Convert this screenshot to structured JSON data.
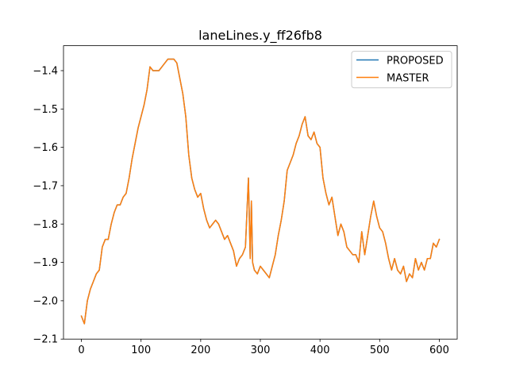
{
  "chart_data": {
    "type": "line",
    "title": "laneLines.y_ff26fb8",
    "xlabel": "",
    "ylabel": "",
    "xlim": [
      -30,
      630
    ],
    "ylim": [
      -2.1,
      -1.335
    ],
    "xticks": [
      0,
      100,
      200,
      300,
      400,
      500,
      600
    ],
    "yticks": [
      -2.1,
      -2.0,
      -1.9,
      -1.8,
      -1.7,
      -1.6,
      -1.5,
      -1.4
    ],
    "xtick_labels": [
      "0",
      "100",
      "200",
      "300",
      "400",
      "500",
      "600"
    ],
    "ytick_labels": [
      "−2.1",
      "−2.0",
      "−1.9",
      "−1.8",
      "−1.7",
      "−1.6",
      "−1.5",
      "−1.4"
    ],
    "grid": false,
    "legend_position": "top-right",
    "x": [
      0,
      5,
      10,
      15,
      20,
      25,
      30,
      35,
      40,
      45,
      50,
      55,
      60,
      65,
      70,
      75,
      80,
      85,
      90,
      95,
      100,
      105,
      110,
      115,
      120,
      125,
      130,
      135,
      140,
      145,
      150,
      155,
      160,
      165,
      170,
      175,
      180,
      185,
      190,
      195,
      200,
      205,
      210,
      215,
      220,
      225,
      230,
      235,
      240,
      245,
      250,
      255,
      260,
      265,
      270,
      275,
      280,
      283,
      285,
      287,
      290,
      295,
      300,
      305,
      310,
      315,
      320,
      325,
      330,
      335,
      340,
      345,
      350,
      355,
      360,
      365,
      370,
      375,
      380,
      385,
      390,
      395,
      400,
      405,
      410,
      415,
      420,
      425,
      430,
      435,
      440,
      445,
      450,
      455,
      460,
      465,
      470,
      475,
      480,
      485,
      490,
      495,
      500,
      505,
      510,
      515,
      520,
      525,
      530,
      535,
      540,
      545,
      550,
      555,
      560,
      565,
      570,
      575,
      580,
      585,
      590,
      595,
      600
    ],
    "series": [
      {
        "name": "PROPOSED",
        "color": "#1f77b4",
        "values": [
          -2.04,
          -2.06,
          -2.0,
          -1.97,
          -1.95,
          -1.93,
          -1.92,
          -1.86,
          -1.84,
          -1.84,
          -1.8,
          -1.77,
          -1.75,
          -1.75,
          -1.73,
          -1.72,
          -1.68,
          -1.63,
          -1.59,
          -1.55,
          -1.52,
          -1.49,
          -1.45,
          -1.39,
          -1.4,
          -1.4,
          -1.4,
          -1.39,
          -1.38,
          -1.37,
          -1.37,
          -1.37,
          -1.38,
          -1.42,
          -1.46,
          -1.52,
          -1.62,
          -1.68,
          -1.71,
          -1.73,
          -1.72,
          -1.76,
          -1.79,
          -1.81,
          -1.8,
          -1.79,
          -1.8,
          -1.82,
          -1.84,
          -1.83,
          -1.85,
          -1.87,
          -1.91,
          -1.89,
          -1.88,
          -1.86,
          -1.68,
          -1.89,
          -1.74,
          -1.9,
          -1.92,
          -1.93,
          -1.91,
          -1.92,
          -1.93,
          -1.94,
          -1.91,
          -1.88,
          -1.83,
          -1.79,
          -1.74,
          -1.66,
          -1.64,
          -1.62,
          -1.59,
          -1.57,
          -1.54,
          -1.52,
          -1.57,
          -1.58,
          -1.56,
          -1.59,
          -1.6,
          -1.68,
          -1.72,
          -1.75,
          -1.73,
          -1.78,
          -1.83,
          -1.8,
          -1.82,
          -1.86,
          -1.87,
          -1.88,
          -1.88,
          -1.9,
          -1.82,
          -1.88,
          -1.83,
          -1.78,
          -1.74,
          -1.78,
          -1.81,
          -1.82,
          -1.85,
          -1.89,
          -1.92,
          -1.89,
          -1.92,
          -1.93,
          -1.91,
          -1.95,
          -1.93,
          -1.94,
          -1.89,
          -1.92,
          -1.9,
          -1.92,
          -1.89,
          -1.89,
          -1.85,
          -1.86,
          -1.84
        ]
      },
      {
        "name": "MASTER",
        "color": "#ff7f0e",
        "values": [
          -2.04,
          -2.06,
          -2.0,
          -1.97,
          -1.95,
          -1.93,
          -1.92,
          -1.86,
          -1.84,
          -1.84,
          -1.8,
          -1.77,
          -1.75,
          -1.75,
          -1.73,
          -1.72,
          -1.68,
          -1.63,
          -1.59,
          -1.55,
          -1.52,
          -1.49,
          -1.45,
          -1.39,
          -1.4,
          -1.4,
          -1.4,
          -1.39,
          -1.38,
          -1.37,
          -1.37,
          -1.37,
          -1.38,
          -1.42,
          -1.46,
          -1.52,
          -1.62,
          -1.68,
          -1.71,
          -1.73,
          -1.72,
          -1.76,
          -1.79,
          -1.81,
          -1.8,
          -1.79,
          -1.8,
          -1.82,
          -1.84,
          -1.83,
          -1.85,
          -1.87,
          -1.91,
          -1.89,
          -1.88,
          -1.86,
          -1.68,
          -1.89,
          -1.74,
          -1.9,
          -1.92,
          -1.93,
          -1.91,
          -1.92,
          -1.93,
          -1.94,
          -1.91,
          -1.88,
          -1.83,
          -1.79,
          -1.74,
          -1.66,
          -1.64,
          -1.62,
          -1.59,
          -1.57,
          -1.54,
          -1.52,
          -1.57,
          -1.58,
          -1.56,
          -1.59,
          -1.6,
          -1.68,
          -1.72,
          -1.75,
          -1.73,
          -1.78,
          -1.83,
          -1.8,
          -1.82,
          -1.86,
          -1.87,
          -1.88,
          -1.88,
          -1.9,
          -1.82,
          -1.88,
          -1.83,
          -1.78,
          -1.74,
          -1.78,
          -1.81,
          -1.82,
          -1.85,
          -1.89,
          -1.92,
          -1.89,
          -1.92,
          -1.93,
          -1.91,
          -1.95,
          -1.93,
          -1.94,
          -1.89,
          -1.92,
          -1.9,
          -1.92,
          -1.89,
          -1.89,
          -1.85,
          -1.86,
          -1.84
        ]
      }
    ]
  }
}
